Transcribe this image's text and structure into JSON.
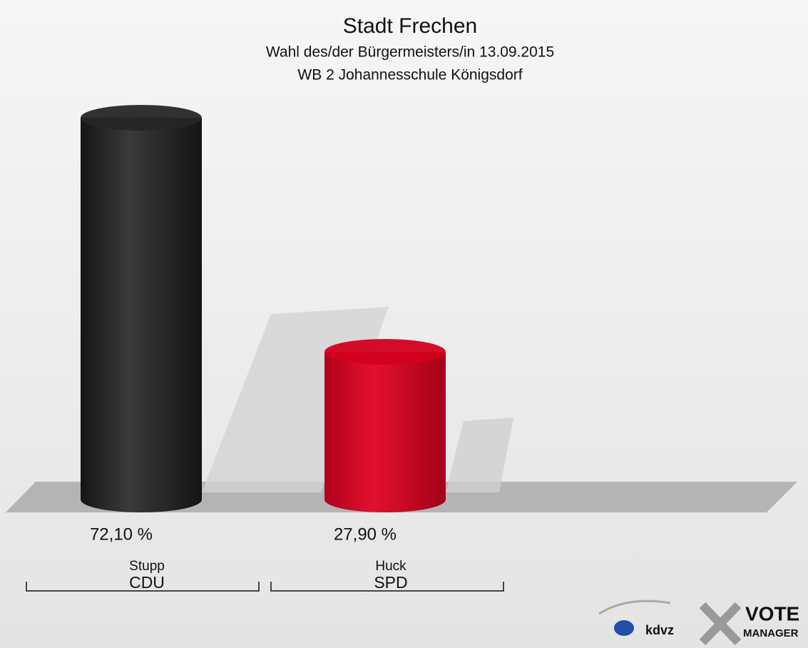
{
  "chart_data": {
    "type": "bar",
    "title": "Stadt Frechen",
    "subtitle": [
      "Wahl des/der Bürgermeisters/in 13.09.2015",
      "WB 2 Johannesschule Königsdorf"
    ],
    "categories": [
      "Stupp",
      "Huck"
    ],
    "parties": [
      "CDU",
      "SPD"
    ],
    "values": [
      72.1,
      27.9
    ],
    "value_labels": [
      "72,10 %",
      "27,90 %"
    ],
    "colors": [
      "#262626",
      "#d4001f"
    ]
  },
  "logo": {
    "texts": [
      "kdvz",
      "VOTE",
      "MANAGER"
    ]
  }
}
